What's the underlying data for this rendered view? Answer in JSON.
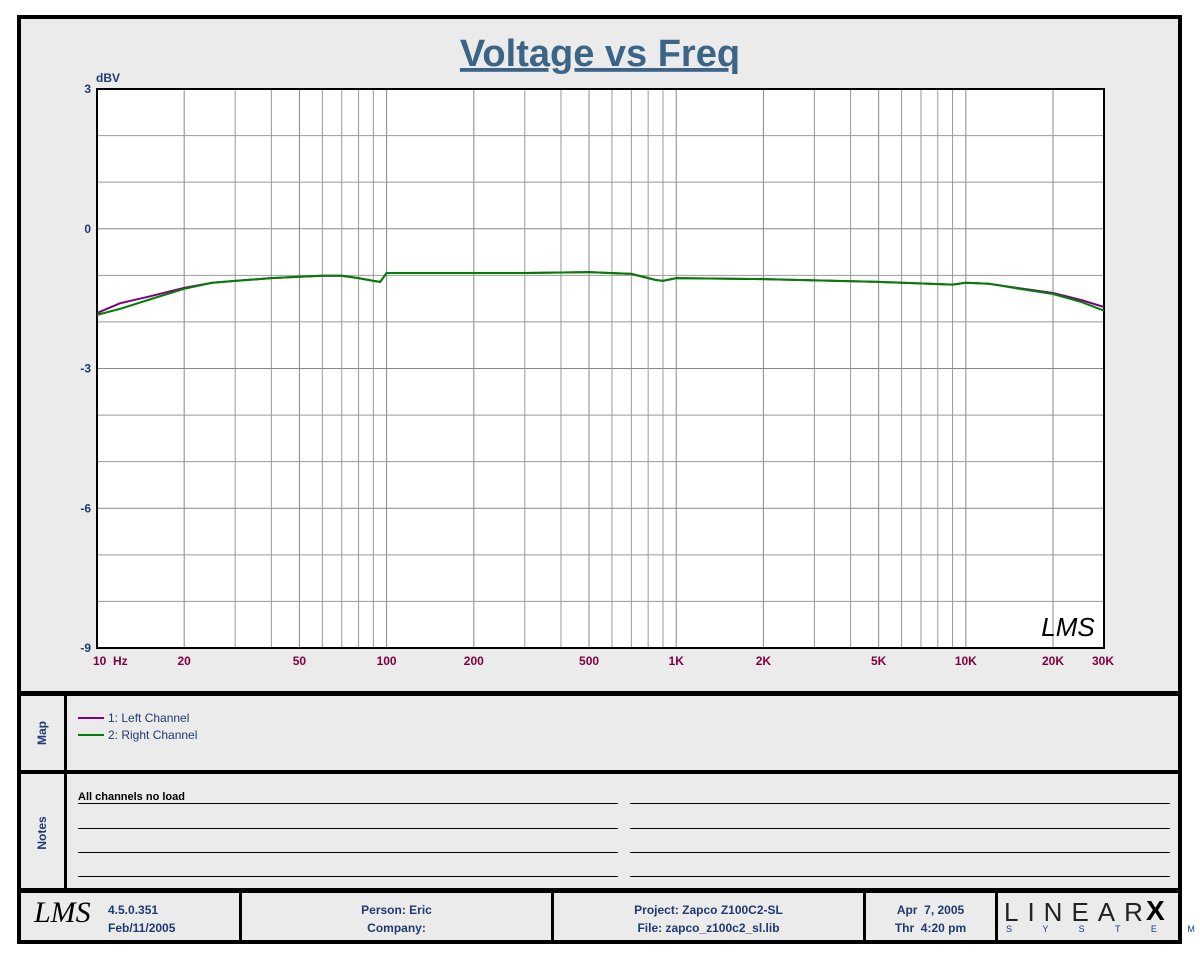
{
  "chart_data": {
    "type": "line",
    "title": "Voltage vs Freq",
    "y_label": "dBV",
    "x_scale": "log",
    "x": [
      10,
      12,
      15,
      20,
      25,
      30,
      40,
      50,
      60,
      70,
      80,
      90,
      95,
      100,
      200,
      300,
      500,
      700,
      850,
      900,
      1000,
      2000,
      5000,
      9000,
      10000,
      12000,
      15000,
      20000,
      25000,
      30000
    ],
    "series": [
      {
        "name": "1: Left Channel",
        "color": "#800080",
        "values": [
          -1.81,
          -1.6,
          -1.46,
          -1.27,
          -1.16,
          -1.12,
          -1.06,
          -1.03,
          -1.01,
          -1.01,
          -1.06,
          -1.12,
          -1.14,
          -0.95,
          -0.95,
          -0.95,
          -0.93,
          -0.97,
          -1.1,
          -1.12,
          -1.06,
          -1.08,
          -1.14,
          -1.2,
          -1.16,
          -1.18,
          -1.27,
          -1.38,
          -1.53,
          -1.68
        ]
      },
      {
        "name": "2: Right Channel",
        "color": "#008000",
        "values": [
          -1.85,
          -1.72,
          -1.53,
          -1.29,
          -1.16,
          -1.12,
          -1.06,
          -1.03,
          -1.01,
          -1.01,
          -1.06,
          -1.12,
          -1.14,
          -0.95,
          -0.95,
          -0.95,
          -0.93,
          -0.97,
          -1.1,
          -1.12,
          -1.06,
          -1.08,
          -1.14,
          -1.2,
          -1.16,
          -1.18,
          -1.28,
          -1.4,
          -1.57,
          -1.76
        ]
      }
    ],
    "xlim": [
      10,
      30000
    ],
    "ylim": [
      -9,
      3
    ],
    "yticks": [
      3,
      0,
      -3,
      -6,
      -9
    ],
    "y_grid": [
      2,
      1,
      -1,
      -2,
      -4,
      -5,
      -7,
      -8
    ],
    "xticks": [
      {
        "value": 10,
        "label": "10  Hz"
      },
      20,
      50,
      100,
      200,
      500,
      {
        "value": 1000,
        "label": "1K"
      },
      {
        "value": 2000,
        "label": "2K"
      },
      {
        "value": 5000,
        "label": "5K"
      },
      {
        "value": 10000,
        "label": "10K"
      },
      {
        "value": 20000,
        "label": "20K"
      },
      {
        "value": 30000,
        "label": "30K"
      }
    ],
    "x_grid": [
      30,
      40,
      60,
      70,
      80,
      90,
      300,
      400,
      600,
      700,
      800,
      900,
      3000,
      4000,
      6000,
      7000,
      8000,
      9000
    ],
    "grid": true,
    "watermark": "LMS"
  },
  "legend_panel": {
    "title": "Map"
  },
  "notes": {
    "title": "Notes",
    "lines": [
      "All channels no load"
    ]
  },
  "footer": {
    "logo": "LMS",
    "version": "4.5.0.351",
    "build_date": "Feb/11/2005",
    "person": "Person: Eric",
    "company": "Company:",
    "project": "Project: Zapco Z100C2-SL",
    "file": "File: zapco_z100c2_sl.lib",
    "date": "Apr  7, 2005",
    "time": "Thr  4:20 pm",
    "brand": "LINEAR",
    "brand_mark": "X",
    "brand_sub": "S Y S T E M S"
  }
}
